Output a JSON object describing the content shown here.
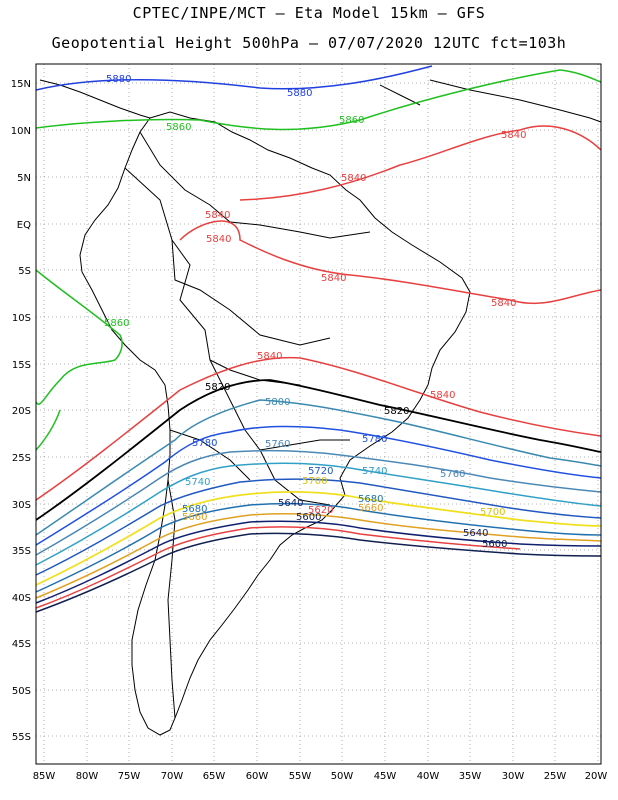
{
  "header": {
    "line1": "CPTEC/INPE/MCT –   Eta Model 15km – GFS",
    "line2": "Geopotential Height 500hPa – 07/07/2020 12UTC fct=103h"
  },
  "axes": {
    "lat_labels": [
      "15N",
      "10N",
      "5N",
      "EQ",
      "5S",
      "10S",
      "15S",
      "20S",
      "25S",
      "30S",
      "35S",
      "40S",
      "45S",
      "50S",
      "55S"
    ],
    "lon_labels": [
      "85W",
      "80W",
      "75W",
      "70W",
      "65W",
      "60W",
      "55W",
      "50W",
      "45W",
      "40W",
      "35W",
      "30W",
      "25W",
      "20W"
    ],
    "grid": "dotted"
  },
  "contours": [
    {
      "value": "5880",
      "color": "#2040e0"
    },
    {
      "value": "5860",
      "color": "#20c020"
    },
    {
      "value": "5840",
      "color": "#e84040"
    },
    {
      "value": "5820",
      "color": "#000000"
    },
    {
      "value": "5800",
      "color": "#3a8ab0"
    },
    {
      "value": "5780",
      "color": "#2050e0"
    },
    {
      "value": "5760",
      "color": "#4a88b8"
    },
    {
      "value": "5740",
      "color": "#30a0c8"
    },
    {
      "value": "5720",
      "color": "#2058c0"
    },
    {
      "value": "5700",
      "color": "#f0e020"
    },
    {
      "value": "5680",
      "color": "#2070b0"
    },
    {
      "value": "5660",
      "color": "#e0a020"
    },
    {
      "value": "5640",
      "color": "#102070"
    },
    {
      "value": "5620",
      "color": "#e84040"
    },
    {
      "value": "5600",
      "color": "#102050"
    }
  ],
  "contour_labels": [
    {
      "text": "5880",
      "color": "#2040e0"
    },
    {
      "text": "5880",
      "color": "#2040e0"
    },
    {
      "text": "5860",
      "color": "#20c020"
    },
    {
      "text": "5860",
      "color": "#20c020"
    },
    {
      "text": "5860",
      "color": "#20c020"
    },
    {
      "text": "5840",
      "color": "#e84040"
    },
    {
      "text": "5840",
      "color": "#e84040"
    },
    {
      "text": "5840",
      "color": "#e84040"
    },
    {
      "text": "5840",
      "color": "#e84040"
    },
    {
      "text": "5840",
      "color": "#e84040"
    },
    {
      "text": "5840",
      "color": "#e84040"
    },
    {
      "text": "5840",
      "color": "#e84040"
    },
    {
      "text": "5840",
      "color": "#e84040"
    },
    {
      "text": "5820",
      "color": "#000000"
    },
    {
      "text": "5820",
      "color": "#000000"
    },
    {
      "text": "5800",
      "color": "#3a8ab0"
    },
    {
      "text": "5780",
      "color": "#2050e0"
    },
    {
      "text": "5780",
      "color": "#2050e0"
    },
    {
      "text": "5760",
      "color": "#4a88b8"
    },
    {
      "text": "5760",
      "color": "#4a88b8"
    },
    {
      "text": "5740",
      "color": "#30a0c8"
    },
    {
      "text": "5740",
      "color": "#30a0c8"
    },
    {
      "text": "5720",
      "color": "#2058c0"
    },
    {
      "text": "5700",
      "color": "#d8c010"
    },
    {
      "text": "5700",
      "color": "#d8c010"
    },
    {
      "text": "5680",
      "color": "#2070b0"
    },
    {
      "text": "5680",
      "color": "#2070b0"
    },
    {
      "text": "5660",
      "color": "#e0a020"
    },
    {
      "text": "5660",
      "color": "#e0a020"
    },
    {
      "text": "5640",
      "color": "#102070"
    },
    {
      "text": "5640",
      "color": "#102070"
    },
    {
      "text": "5620",
      "color": "#e84040"
    },
    {
      "text": "5600",
      "color": "#102050"
    },
    {
      "text": "5600",
      "color": "#102050"
    }
  ]
}
